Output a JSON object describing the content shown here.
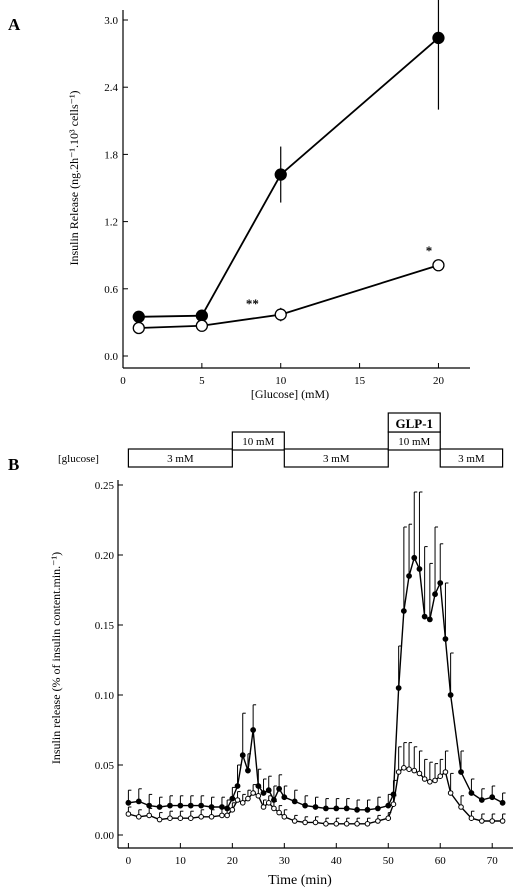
{
  "panelA": {
    "label": "A",
    "chart_data": {
      "type": "line",
      "ylabel": "Insulin Release (ng.2h⁻¹.10³ cells⁻¹)",
      "xlabel": "[Glucose] (mM)",
      "xlim": [
        0,
        22
      ],
      "ylim": [
        0,
        3.0
      ],
      "x_ticks": [
        "0",
        "5",
        "10",
        "15",
        "20"
      ],
      "y_ticks": [
        "0.0",
        "0.6",
        "1.2",
        "1.8",
        "2.4",
        "3.0"
      ],
      "series": [
        {
          "marker": "filled",
          "points": [
            {
              "x": 1,
              "y": 0.35,
              "err": 0.02
            },
            {
              "x": 5,
              "y": 0.36,
              "err": 0.03
            },
            {
              "x": 10,
              "y": 1.62,
              "err": 0.25
            },
            {
              "x": 20,
              "y": 2.84,
              "err": 0.64
            }
          ]
        },
        {
          "marker": "open",
          "points": [
            {
              "x": 1,
              "y": 0.25,
              "err": 0.04
            },
            {
              "x": 5,
              "y": 0.27,
              "err": 0.04
            },
            {
              "x": 10,
              "y": 0.37,
              "err": 0.06
            },
            {
              "x": 20,
              "y": 0.81,
              "err": 0.04
            }
          ]
        }
      ],
      "annotations": [
        {
          "text": "**",
          "x": 8.2,
          "y": 0.43
        },
        {
          "text": "*",
          "x": 19.4,
          "y": 0.9
        }
      ]
    }
  },
  "panelB": {
    "label": "B",
    "protocol": {
      "row_label": "[glucose]",
      "glp_label": "GLP-1",
      "segments": [
        {
          "label": "3 mM",
          "start": 0,
          "end": 20,
          "level": "low"
        },
        {
          "label": "10 mM",
          "start": 20,
          "end": 30,
          "level": "high"
        },
        {
          "label": "3 mM",
          "start": 30,
          "end": 50,
          "level": "low"
        },
        {
          "label": "10 mM",
          "start": 50,
          "end": 60,
          "level": "high"
        },
        {
          "label": "3 mM",
          "start": 60,
          "end": 72,
          "level": "low"
        }
      ]
    },
    "chart_data": {
      "type": "line",
      "ylabel": "Insulin release (% of insulin content.min.⁻¹)",
      "xlabel": "Time (min)",
      "xlim": [
        -2,
        74
      ],
      "ylim": [
        0,
        0.25
      ],
      "x_ticks": [
        "0",
        "10",
        "20",
        "30",
        "40",
        "50",
        "60",
        "70"
      ],
      "y_ticks": [
        "0.00",
        "0.05",
        "0.10",
        "0.15",
        "0.20",
        "0.25"
      ],
      "x": [
        0,
        2,
        4,
        6,
        8,
        10,
        12,
        14,
        16,
        18,
        19,
        20,
        21,
        22,
        23,
        24,
        25,
        26,
        27,
        28,
        29,
        30,
        32,
        34,
        36,
        38,
        40,
        42,
        44,
        46,
        48,
        50,
        51,
        52,
        53,
        54,
        55,
        56,
        57,
        58,
        59,
        60,
        61,
        62,
        64,
        66,
        68,
        70,
        72
      ],
      "series": [
        {
          "marker": "filled",
          "values": [
            0.023,
            0.024,
            0.021,
            0.02,
            0.021,
            0.021,
            0.021,
            0.021,
            0.02,
            0.02,
            0.019,
            0.026,
            0.035,
            0.057,
            0.046,
            0.075,
            0.035,
            0.03,
            0.032,
            0.025,
            0.033,
            0.027,
            0.024,
            0.021,
            0.02,
            0.019,
            0.019,
            0.019,
            0.018,
            0.018,
            0.019,
            0.021,
            0.029,
            0.105,
            0.16,
            0.185,
            0.198,
            0.19,
            0.156,
            0.154,
            0.172,
            0.18,
            0.14,
            0.1,
            0.045,
            0.03,
            0.025,
            0.027,
            0.023
          ],
          "errors": [
            0.009,
            0.009,
            0.008,
            0.007,
            0.007,
            0.007,
            0.007,
            0.007,
            0.007,
            0.007,
            0.006,
            0.008,
            0.015,
            0.03,
            0.012,
            0.018,
            0.012,
            0.01,
            0.01,
            0.01,
            0.01,
            0.008,
            0.008,
            0.007,
            0.007,
            0.007,
            0.007,
            0.007,
            0.007,
            0.007,
            0.008,
            0.008,
            0.01,
            0.03,
            0.06,
            0.037,
            0.047,
            0.055,
            0.05,
            0.04,
            0.048,
            0.028,
            0.04,
            0.03,
            0.015,
            0.01,
            0.008,
            0.008,
            0.007
          ]
        },
        {
          "marker": "open",
          "values": [
            0.015,
            0.013,
            0.014,
            0.011,
            0.012,
            0.012,
            0.012,
            0.013,
            0.013,
            0.014,
            0.014,
            0.018,
            0.025,
            0.023,
            0.026,
            0.03,
            0.028,
            0.02,
            0.023,
            0.019,
            0.016,
            0.013,
            0.01,
            0.009,
            0.009,
            0.008,
            0.008,
            0.008,
            0.008,
            0.008,
            0.01,
            0.012,
            0.022,
            0.045,
            0.048,
            0.047,
            0.046,
            0.044,
            0.04,
            0.038,
            0.039,
            0.042,
            0.045,
            0.03,
            0.02,
            0.012,
            0.01,
            0.01,
            0.01
          ],
          "errors": [
            0.005,
            0.005,
            0.005,
            0.005,
            0.005,
            0.005,
            0.005,
            0.005,
            0.005,
            0.005,
            0.005,
            0.005,
            0.006,
            0.006,
            0.006,
            0.006,
            0.006,
            0.005,
            0.005,
            0.005,
            0.005,
            0.005,
            0.004,
            0.004,
            0.004,
            0.004,
            0.004,
            0.004,
            0.004,
            0.004,
            0.004,
            0.004,
            0.006,
            0.018,
            0.018,
            0.019,
            0.017,
            0.016,
            0.014,
            0.014,
            0.012,
            0.012,
            0.015,
            0.014,
            0.008,
            0.005,
            0.005,
            0.005,
            0.005
          ]
        }
      ]
    }
  }
}
